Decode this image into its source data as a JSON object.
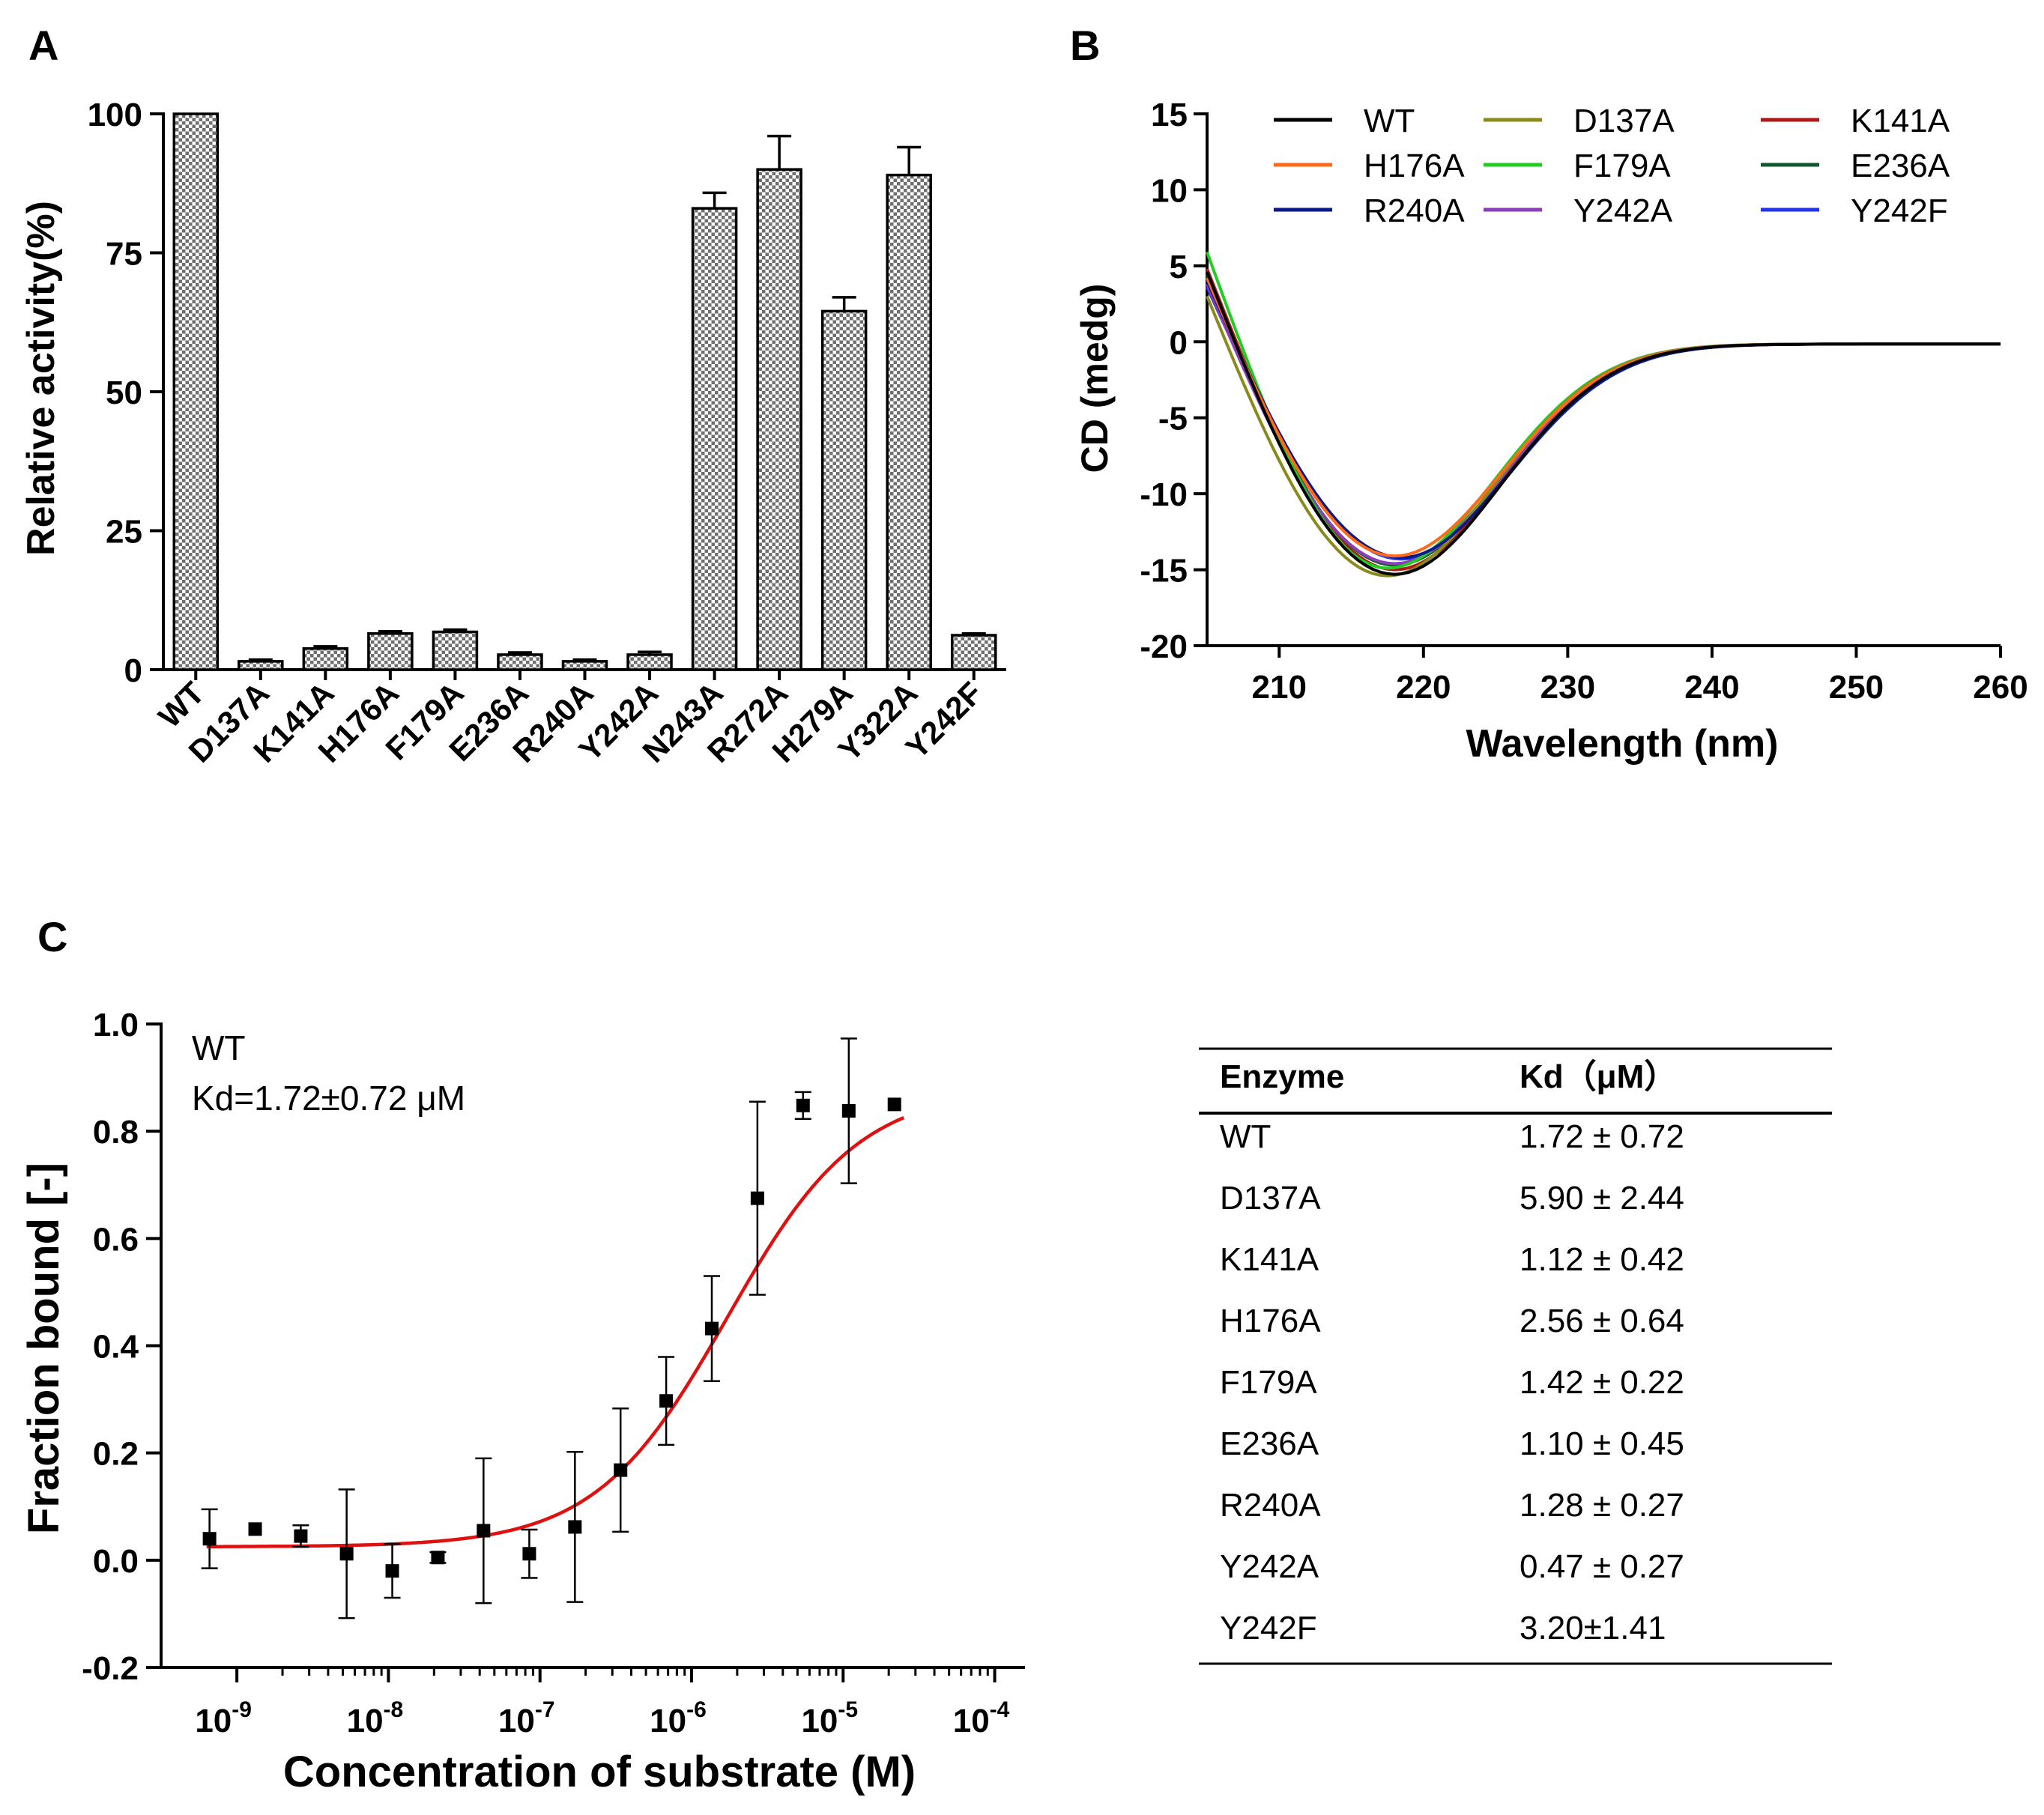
{
  "chart_data": [
    {
      "panel": "A",
      "type": "bar",
      "ylabel": "Relative activity(%)",
      "xlabel": "",
      "ylim": [
        0,
        100
      ],
      "yticks": [
        0,
        25,
        50,
        75,
        100
      ],
      "categories": [
        "WT",
        "D137A",
        "K141A",
        "H176A",
        "F179A",
        "E236A",
        "R240A",
        "Y242A",
        "N243A",
        "R272A",
        "H279A",
        "Y322A",
        "Y242F"
      ],
      "values": [
        100,
        1.5,
        3.8,
        6.5,
        6.8,
        2.7,
        1.5,
        2.7,
        83,
        90,
        64.5,
        89,
        6.2
      ],
      "errors": [
        0,
        0.3,
        0.4,
        0.4,
        0.4,
        0.4,
        0.3,
        0.5,
        2.8,
        6,
        2.5,
        5,
        0.3
      ],
      "fill": "cross-hatch grey"
    },
    {
      "panel": "B",
      "type": "line",
      "xlabel": "Wavelength (nm)",
      "ylabel": "CD (medg)",
      "xlim": [
        205,
        260
      ],
      "ylim": [
        -20,
        15
      ],
      "xticks": [
        210,
        220,
        230,
        240,
        250,
        260
      ],
      "yticks": [
        -20,
        -15,
        -10,
        -5,
        0,
        5,
        10,
        15
      ],
      "series": [
        {
          "name": "WT",
          "color": "#000000",
          "min": -15.3,
          "minx": 218,
          "start": 4.6
        },
        {
          "name": "H176A",
          "color": "#ff6a1a",
          "min": -14.1,
          "minx": 218,
          "start": 4.2
        },
        {
          "name": "R240A",
          "color": "#0a1a88",
          "min": -14.2,
          "minx": 218.5,
          "start": 4.0
        },
        {
          "name": "D137A",
          "color": "#8a8a1a",
          "min": -15.4,
          "minx": 217.5,
          "start": 3.0
        },
        {
          "name": "F179A",
          "color": "#22cc22",
          "min": -14.9,
          "minx": 217.5,
          "start": 5.9
        },
        {
          "name": "Y242A",
          "color": "#8a3fb8",
          "min": -14.6,
          "minx": 218,
          "start": 3.8
        },
        {
          "name": "K141A",
          "color": "#b01818",
          "min": -15.0,
          "minx": 218,
          "start": 4.8
        },
        {
          "name": "E236A",
          "color": "#0e5a2e",
          "min": -14.7,
          "minx": 218,
          "start": 4.4
        },
        {
          "name": "Y242F",
          "color": "#2233ee",
          "min": -14.3,
          "minx": 218.5,
          "start": 3.6
        }
      ]
    },
    {
      "panel": "C",
      "type": "scatter",
      "xlabel": "Concentration of substrate (M)",
      "ylabel": "Fraction bound [-]",
      "xscale": "log",
      "xlim_log10": [
        -9.5,
        -3.8
      ],
      "ylim": [
        -0.2,
        1.0
      ],
      "yticks": [
        "-0.2",
        "0.0",
        "0.2",
        "0.4",
        "0.6",
        "0.8",
        "1.0"
      ],
      "xtick_exponents": [
        "-9",
        "-8",
        "-7",
        "-6",
        "-5",
        "-4"
      ],
      "annotation": [
        "WT",
        "Kd=1.72±0.72 μM"
      ],
      "points": [
        {
          "x": 6.6e-10,
          "y": 0.04,
          "err": 0.055
        },
        {
          "x": 1.32e-09,
          "y": 0.058,
          "err": 0
        },
        {
          "x": 2.64e-09,
          "y": 0.045,
          "err": 0.02
        },
        {
          "x": 5.3e-09,
          "y": 0.012,
          "err": 0.12
        },
        {
          "x": 1.06e-08,
          "y": -0.02,
          "err": 0.05
        },
        {
          "x": 2.12e-08,
          "y": 0.005,
          "err": 0.01
        },
        {
          "x": 4.24e-08,
          "y": 0.055,
          "err": 0.135
        },
        {
          "x": 8.5e-08,
          "y": 0.012,
          "err": 0.045
        },
        {
          "x": 1.7e-07,
          "y": 0.062,
          "err": 0.14
        },
        {
          "x": 3.4e-07,
          "y": 0.168,
          "err": 0.115
        },
        {
          "x": 6.8e-07,
          "y": 0.297,
          "err": 0.082
        },
        {
          "x": 1.36e-06,
          "y": 0.432,
          "err": 0.098
        },
        {
          "x": 2.72e-06,
          "y": 0.675,
          "err": 0.18
        },
        {
          "x": 5.44e-06,
          "y": 0.848,
          "err": 0.025
        },
        {
          "x": 1.09e-05,
          "y": 0.838,
          "err": 0.135
        },
        {
          "x": 2.18e-05,
          "y": 0.85,
          "err": 0
        }
      ],
      "fit": {
        "bottom": 0.025,
        "top": 0.88,
        "kd": 1.72e-06,
        "color": "#e01010"
      }
    }
  ],
  "panel_labels": {
    "a": "A",
    "b": "B",
    "c": "C"
  },
  "kd_table": {
    "headers": [
      "Enzyme",
      "Kd（μM）"
    ],
    "rows": [
      [
        "WT",
        "1.72 ± 0.72"
      ],
      [
        "D137A",
        "5.90 ± 2.44"
      ],
      [
        "K141A",
        "1.12 ± 0.42"
      ],
      [
        "H176A",
        "2.56 ± 0.64"
      ],
      [
        "F179A",
        "1.42 ± 0.22"
      ],
      [
        "E236A",
        "1.10 ± 0.45"
      ],
      [
        "R240A",
        "1.28 ± 0.27"
      ],
      [
        "Y242A",
        "0.47 ± 0.27"
      ],
      [
        "Y242F",
        "3.20±1.41"
      ]
    ]
  }
}
